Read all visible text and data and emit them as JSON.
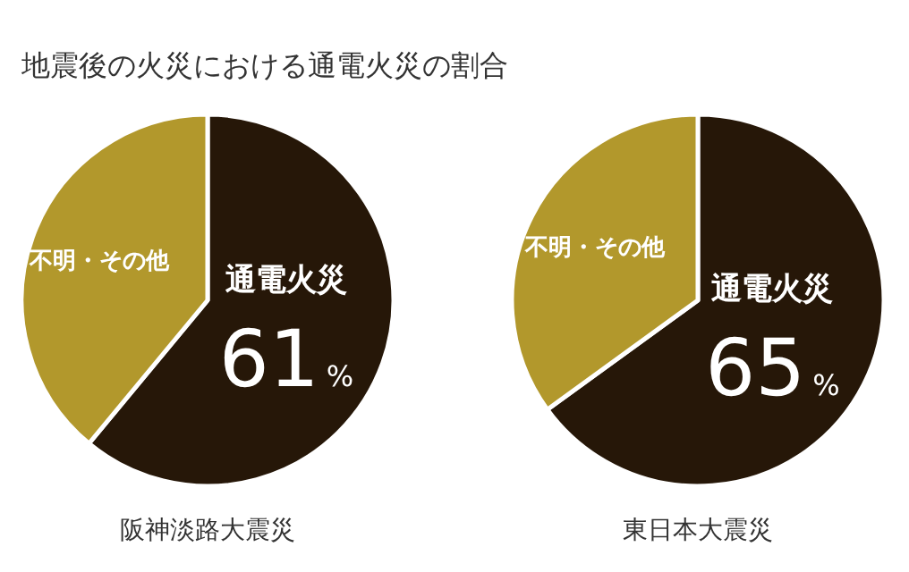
{
  "chart_data": [
    {
      "type": "pie",
      "title": "地震後の火災における通電火災の割合",
      "xlabel": "阪神淡路大震災",
      "categories": [
        "通電火災",
        "不明・その他"
      ],
      "values": [
        61,
        39
      ],
      "colors": [
        "#261708",
        "#b2982c"
      ],
      "value_labels": [
        "61%",
        null
      ]
    },
    {
      "type": "pie",
      "xlabel": "東日本大震災",
      "categories": [
        "通電火災",
        "不明・その他"
      ],
      "values": [
        65,
        35
      ],
      "colors": [
        "#261708",
        "#b2982c"
      ],
      "value_labels": [
        "65%",
        null
      ]
    }
  ]
}
